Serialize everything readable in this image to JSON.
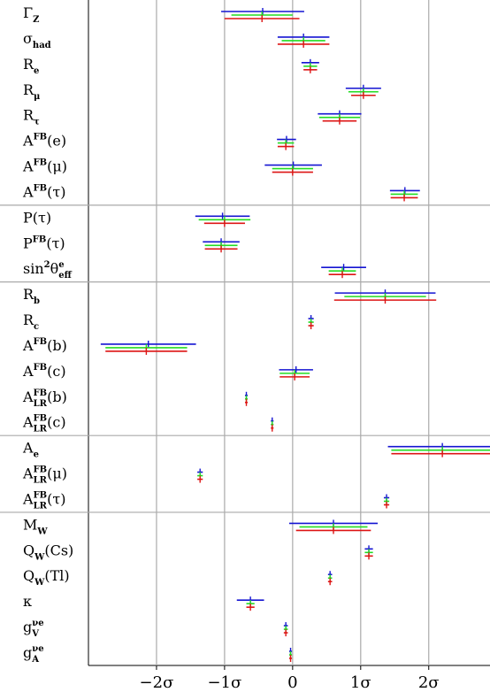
{
  "chart_data": {
    "type": "errorbar",
    "xlim": [
      -3.0,
      2.9
    ],
    "xticks": [
      {
        "value": -2,
        "label": "−2σ"
      },
      {
        "value": -1,
        "label": "−1σ"
      },
      0,
      {
        "value": 1,
        "label": "1σ"
      },
      {
        "value": 2,
        "label": "2σ"
      }
    ],
    "grid": true,
    "series": [
      {
        "color": "#1414d2"
      },
      {
        "color": "#22dd22"
      },
      {
        "color": "#dd1414"
      }
    ],
    "groups": [
      {
        "rows": [
          {
            "label": [
              {
                "text": "Γ"
              },
              {
                "text": "Z",
                "pos": "sub"
              }
            ],
            "values": [
              -0.44,
              -0.45,
              -0.45
            ],
            "errors": [
              0.61,
              0.45,
              0.55
            ]
          },
          {
            "label": [
              {
                "text": "σ"
              },
              {
                "text": "had",
                "pos": "sub"
              }
            ],
            "values": [
              0.16,
              0.16,
              0.16
            ],
            "errors": [
              0.38,
              0.32,
              0.38
            ]
          },
          {
            "label": [
              {
                "text": "R"
              },
              {
                "text": "e",
                "pos": "sub"
              }
            ],
            "values": [
              0.26,
              0.26,
              0.26
            ],
            "errors": [
              0.13,
              0.1,
              0.1
            ]
          },
          {
            "label": [
              {
                "text": "R"
              },
              {
                "text": "μ",
                "pos": "sub"
              }
            ],
            "values": [
              1.04,
              1.04,
              1.04
            ],
            "errors": [
              0.26,
              0.22,
              0.18
            ]
          },
          {
            "label": [
              {
                "text": "R"
              },
              {
                "text": "τ",
                "pos": "sub"
              }
            ],
            "values": [
              0.69,
              0.69,
              0.69
            ],
            "errors": [
              0.32,
              0.3,
              0.25
            ]
          },
          {
            "label": [
              {
                "text": "A"
              },
              {
                "text": "FB",
                "pos": "sup"
              },
              {
                "text": "(e)"
              }
            ],
            "values": [
              -0.09,
              -0.1,
              -0.1
            ],
            "errors": [
              0.14,
              0.12,
              0.12
            ]
          },
          {
            "label": [
              {
                "text": "A"
              },
              {
                "text": "FB",
                "pos": "sup"
              },
              {
                "text": "(μ)"
              }
            ],
            "values": [
              0.01,
              0.0,
              0.0
            ],
            "errors": [
              0.42,
              0.3,
              0.3
            ]
          },
          {
            "label": [
              {
                "text": "A"
              },
              {
                "text": "FB",
                "pos": "sup"
              },
              {
                "text": "(τ)"
              }
            ],
            "values": [
              1.65,
              1.64,
              1.64
            ],
            "errors": [
              0.22,
              0.2,
              0.2
            ]
          }
        ]
      },
      {
        "rows": [
          {
            "label": [
              {
                "text": "P(τ)"
              }
            ],
            "values": [
              -1.03,
              -1.0,
              -1.0
            ],
            "errors": [
              0.4,
              0.38,
              0.3
            ]
          },
          {
            "label": [
              {
                "text": "P"
              },
              {
                "text": "FB",
                "pos": "sup"
              },
              {
                "text": "(τ)"
              }
            ],
            "values": [
              -1.05,
              -1.05,
              -1.05
            ],
            "errors": [
              0.27,
              0.24,
              0.24
            ]
          },
          {
            "label": [
              {
                "text": "sin"
              },
              {
                "text": "2",
                "pos": "sup"
              },
              {
                "text": "θ"
              },
              {
                "text": "e",
                "pos": "sup"
              },
              {
                "text": "eff",
                "pos": "sub"
              }
            ],
            "values": [
              0.75,
              0.73,
              0.73
            ],
            "errors": [
              0.33,
              0.2,
              0.2
            ]
          }
        ]
      },
      {
        "rows": [
          {
            "label": [
              {
                "text": "R"
              },
              {
                "text": "b",
                "pos": "sub"
              }
            ],
            "values": [
              1.36,
              1.36,
              1.36
            ],
            "errors": [
              0.74,
              0.6,
              0.75
            ]
          },
          {
            "label": [
              {
                "text": "R"
              },
              {
                "text": "c",
                "pos": "sub"
              }
            ],
            "values": [
              0.27,
              0.27,
              0.27
            ],
            "errors": [
              0.04,
              0.04,
              0.04
            ]
          },
          {
            "label": [
              {
                "text": "A"
              },
              {
                "text": "FB",
                "pos": "sup"
              },
              {
                "text": "(b)"
              }
            ],
            "values": [
              -2.12,
              -2.15,
              -2.15
            ],
            "errors": [
              0.7,
              0.6,
              0.6
            ]
          },
          {
            "label": [
              {
                "text": "A"
              },
              {
                "text": "FB",
                "pos": "sup"
              },
              {
                "text": "(c)"
              }
            ],
            "values": [
              0.05,
              0.03,
              0.03
            ],
            "errors": [
              0.25,
              0.22,
              0.22
            ]
          },
          {
            "label": [
              {
                "text": "A"
              },
              {
                "text": "FB",
                "pos": "sup"
              },
              {
                "text": "LR",
                "pos": "sub"
              },
              {
                "text": "(b)"
              }
            ],
            "values": [
              -0.68,
              -0.68,
              -0.68
            ],
            "errors": [
              0.02,
              0.02,
              0.02
            ]
          },
          {
            "label": [
              {
                "text": "A"
              },
              {
                "text": "FB",
                "pos": "sup"
              },
              {
                "text": "LR",
                "pos": "sub"
              },
              {
                "text": "(c)"
              }
            ],
            "values": [
              -0.3,
              -0.3,
              -0.3
            ],
            "errors": [
              0.02,
              0.02,
              0.02
            ]
          }
        ]
      },
      {
        "rows": [
          {
            "label": [
              {
                "text": "A"
              },
              {
                "text": "e",
                "pos": "sub"
              }
            ],
            "values": [
              2.2,
              2.2,
              2.2
            ],
            "errors": [
              0.8,
              0.75,
              0.75
            ]
          },
          {
            "label": [
              {
                "text": "A"
              },
              {
                "text": "FB",
                "pos": "sup"
              },
              {
                "text": "LR",
                "pos": "sub"
              },
              {
                "text": "(μ)"
              }
            ],
            "values": [
              -1.36,
              -1.36,
              -1.36
            ],
            "errors": [
              0.04,
              0.04,
              0.04
            ]
          },
          {
            "label": [
              {
                "text": "A"
              },
              {
                "text": "FB",
                "pos": "sup"
              },
              {
                "text": "LR",
                "pos": "sub"
              },
              {
                "text": "(τ)"
              }
            ],
            "values": [
              1.38,
              1.38,
              1.38
            ],
            "errors": [
              0.04,
              0.04,
              0.04
            ]
          }
        ]
      },
      {
        "rows": [
          {
            "label": [
              {
                "text": "M"
              },
              {
                "text": "W",
                "pos": "sub"
              }
            ],
            "values": [
              0.6,
              0.6,
              0.6
            ],
            "errors": [
              0.65,
              0.5,
              0.55
            ]
          },
          {
            "label": [
              {
                "text": "Q"
              },
              {
                "text": "W",
                "pos": "sub"
              },
              {
                "text": "(Cs)"
              }
            ],
            "values": [
              1.12,
              1.12,
              1.12
            ],
            "errors": [
              0.06,
              0.06,
              0.06
            ]
          },
          {
            "label": [
              {
                "text": "Q"
              },
              {
                "text": "W",
                "pos": "sub"
              },
              {
                "text": "(Tl)"
              }
            ],
            "values": [
              0.55,
              0.55,
              0.55
            ],
            "errors": [
              0.03,
              0.03,
              0.03
            ]
          },
          {
            "label": [
              {
                "text": "κ"
              }
            ],
            "values": [
              -0.62,
              -0.62,
              -0.62
            ],
            "errors": [
              0.2,
              0.06,
              0.06
            ]
          },
          {
            "label": [
              {
                "text": "g"
              },
              {
                "text": "νe",
                "pos": "sup"
              },
              {
                "text": "V",
                "pos": "sub"
              }
            ],
            "values": [
              -0.1,
              -0.1,
              -0.1
            ],
            "errors": [
              0.03,
              0.03,
              0.03
            ]
          },
          {
            "label": [
              {
                "text": "g"
              },
              {
                "text": "νe",
                "pos": "sup"
              },
              {
                "text": "A",
                "pos": "sub"
              }
            ],
            "values": [
              -0.03,
              -0.03,
              -0.03
            ],
            "errors": [
              0.02,
              0.02,
              0.02
            ]
          }
        ]
      }
    ]
  }
}
